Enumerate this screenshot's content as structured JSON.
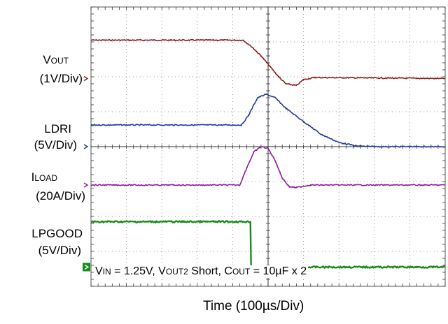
{
  "chart_data": {
    "type": "line",
    "title": "",
    "xlabel": "Time (100µs/Div)",
    "annotation": {
      "vin_label": "V",
      "vin_sub": "IN",
      "vin_value": " = 1.25V, V",
      "vout2_sub": "OUT2",
      "short_text": " Short, C",
      "cout_sub": "OUT",
      "cout_value": " = 10µF x 2"
    },
    "grid": true,
    "x_divisions": 10,
    "y_divisions": 8,
    "series": [
      {
        "name_main": "V",
        "name_sub": "OUT",
        "scale": "(1V/Div)",
        "color": "#8b1a1a",
        "marker_level_div": 5.95,
        "points": [
          [
            0,
            7.05
          ],
          [
            4.3,
            7.05
          ],
          [
            4.55,
            6.85
          ],
          [
            4.8,
            6.6
          ],
          [
            5.05,
            6.3
          ],
          [
            5.3,
            6.0
          ],
          [
            5.5,
            5.8
          ],
          [
            5.8,
            5.75
          ],
          [
            6.0,
            5.92
          ],
          [
            6.3,
            5.98
          ],
          [
            10,
            5.95
          ]
        ]
      },
      {
        "name_main": "LDRI",
        "name_sub": "",
        "scale": "(5V/Div)",
        "color": "#1f3a9a",
        "marker_level_div": 4.0,
        "points": [
          [
            0,
            4.62
          ],
          [
            4.25,
            4.62
          ],
          [
            4.45,
            4.9
          ],
          [
            4.7,
            5.4
          ],
          [
            4.95,
            5.5
          ],
          [
            5.2,
            5.4
          ],
          [
            5.5,
            5.1
          ],
          [
            6.0,
            4.72
          ],
          [
            6.5,
            4.35
          ],
          [
            7.0,
            4.12
          ],
          [
            7.5,
            4.02
          ],
          [
            8.0,
            4.0
          ],
          [
            10,
            4.0
          ]
        ]
      },
      {
        "name_main": "I",
        "name_sub": "LOAD",
        "scale": "(20A/Div)",
        "color": "#8e1a9e",
        "marker_level_div": 2.9,
        "points": [
          [
            0,
            2.9
          ],
          [
            4.2,
            2.9
          ],
          [
            4.4,
            3.4
          ],
          [
            4.6,
            3.85
          ],
          [
            4.8,
            4.0
          ],
          [
            5.0,
            3.95
          ],
          [
            5.2,
            3.6
          ],
          [
            5.4,
            3.1
          ],
          [
            5.6,
            2.85
          ],
          [
            5.8,
            2.83
          ],
          [
            6.2,
            2.9
          ],
          [
            10,
            2.9
          ]
        ]
      },
      {
        "name_main": "LPGOOD",
        "name_sub": "",
        "scale": "(5V/Div)",
        "color": "#1a8a1a",
        "marker_level_div": 0.55,
        "points": [
          [
            0,
            1.85
          ],
          [
            4.5,
            1.85
          ],
          [
            4.52,
            0.55
          ],
          [
            10,
            0.55
          ]
        ]
      }
    ]
  }
}
